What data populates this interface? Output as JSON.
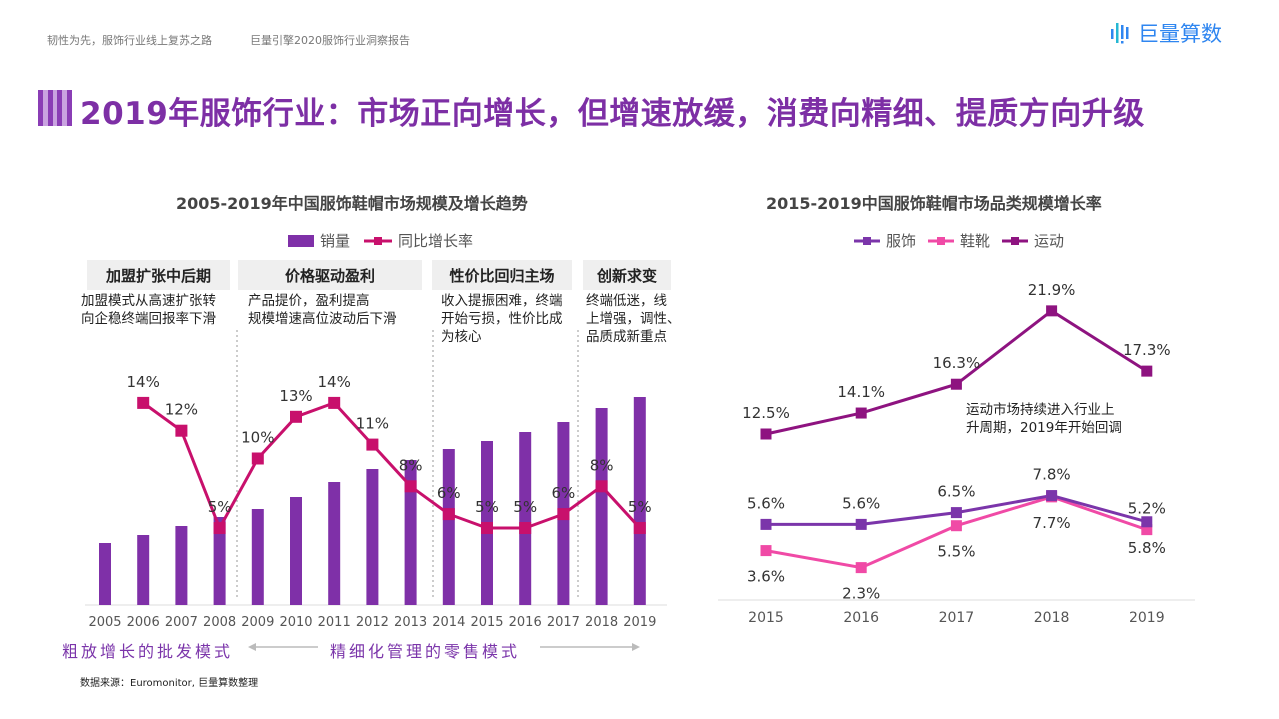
{
  "header": {
    "breadcrumb_1": "韧性为先，服饰行业线上复苏之路",
    "breadcrumb_2": "巨量引擎2020服饰行业洞察报告",
    "logo_text": "巨量算数",
    "title": "2019年服饰行业：市场正向增长，但增速放缓，消费向精细、提质方向升级"
  },
  "colors": {
    "title": "#7d2fa5",
    "bar": "#7f30a8",
    "growth_line": "#c8106c",
    "apparel": "#7b35aa",
    "footwear": "#f04aa6",
    "sports": "#8e1380",
    "logo": "#2f86f0"
  },
  "left_phases": [
    {
      "title": "加盟扩张中后期",
      "desc": [
        "加盟模式从高速扩张转",
        "向企稳终端回报率下滑"
      ]
    },
    {
      "title": "价格驱动盈利",
      "desc": [
        "产品提价，盈利提高",
        "规模增速高位波动后下滑"
      ]
    },
    {
      "title": "性价比回归主场",
      "desc": [
        "收入提振困难，终端",
        "开始亏损，性价比成",
        "为核心"
      ]
    },
    {
      "title": "创新求变",
      "desc": [
        "终端低迷，线",
        "上增强，调性、",
        "品质成新重点"
      ]
    }
  ],
  "modes": {
    "wholesale": "粗放增长的批发模式",
    "retail": "精细化管理的零售模式"
  },
  "source": "数据来源：Euromonitor, 巨量算数整理",
  "chart_data": [
    {
      "type": "bar+line",
      "title": "2005-2019年中国服饰鞋帽市场规模及增长趋势",
      "categories": [
        "2005",
        "2006",
        "2007",
        "2008",
        "2009",
        "2010",
        "2011",
        "2012",
        "2013",
        "2014",
        "2015",
        "2016",
        "2017",
        "2018",
        "2019"
      ],
      "series": [
        {
          "name": "销量",
          "type": "bar",
          "values": [
            62,
            70,
            79,
            88,
            96,
            108,
            123,
            136,
            145,
            156,
            164,
            173,
            183,
            197,
            208
          ]
        },
        {
          "name": "同比增长率",
          "type": "line",
          "values": [
            null,
            14,
            12,
            5,
            10,
            13,
            14,
            11,
            8,
            6,
            5,
            5,
            6,
            8,
            5
          ],
          "labels": [
            null,
            "14%",
            "12%",
            "5%",
            "10%",
            "13%",
            "14%",
            "11%",
            "8%",
            "6%",
            "5%",
            "5%",
            "6%",
            "8%",
            "5%"
          ]
        }
      ],
      "legend": "top",
      "grid": false,
      "y_axis_shown": false
    },
    {
      "type": "line",
      "title": "2015-2019中国服饰鞋帽市场品类规模增长率",
      "categories": [
        "2015",
        "2016",
        "2017",
        "2018",
        "2019"
      ],
      "series": [
        {
          "name": "服饰",
          "values": [
            5.6,
            5.6,
            6.5,
            7.8,
            5.8
          ],
          "labels": [
            "5.6%",
            "5.6%",
            "6.5%",
            "7.8%",
            "5.8%"
          ]
        },
        {
          "name": "鞋靴",
          "values": [
            3.6,
            2.3,
            5.5,
            7.7,
            5.2
          ],
          "labels": [
            "3.6%",
            "2.3%",
            "5.5%",
            "7.7%",
            "5.2%"
          ]
        },
        {
          "name": "运动",
          "values": [
            12.5,
            14.1,
            16.3,
            21.9,
            17.3
          ],
          "labels": [
            "12.5%",
            "14.1%",
            "16.3%",
            "21.9%",
            "17.3%"
          ]
        }
      ],
      "annotation": [
        "运动市场持续进入行业上",
        "升周期，2019年开始回调"
      ],
      "legend": "top",
      "grid": false,
      "y_axis_shown": false
    }
  ]
}
